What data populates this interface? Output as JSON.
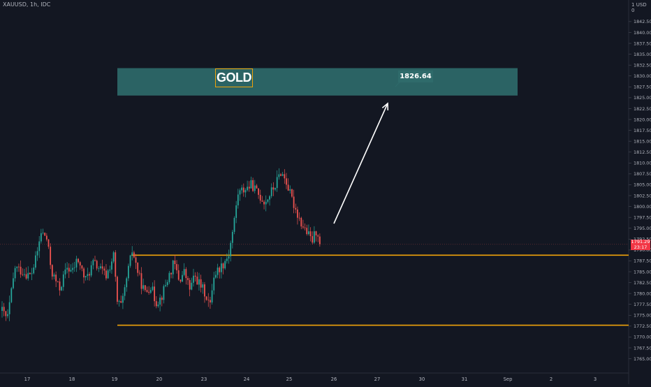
{
  "title": "XAUUSD, 1h, IDC",
  "currency": "USD",
  "currency_mark": "1",
  "axis_top_mark": "0",
  "colors": {
    "background": "#131722",
    "up": "#26a69a",
    "down": "#ef5350",
    "level_line": "#f0a30a",
    "target_zone": "#2f6b6b",
    "arrow": "#ffffff",
    "price_tag": "#f23645"
  },
  "annotations": {
    "gold_label": "GOLD",
    "target_value": "1826.64",
    "current_price": "1791.29",
    "countdown": "23:17"
  },
  "chart_data": {
    "type": "candlestick",
    "symbol": "XAUUSD",
    "timeframe": "1h",
    "source": "IDC",
    "y_axis": {
      "range": [
        1763,
        1846.5
      ],
      "ticks": [
        1765.0,
        1767.5,
        1770.0,
        1772.5,
        1775.0,
        1777.5,
        1780.0,
        1782.5,
        1785.0,
        1787.5,
        1790.0,
        1792.5,
        1795.0,
        1797.5,
        1800.0,
        1802.5,
        1805.0,
        1807.5,
        1810.0,
        1812.5,
        1815.0,
        1817.5,
        1820.0,
        1822.5,
        1825.0,
        1827.5,
        1830.0,
        1832.5,
        1835.0,
        1837.5,
        1840.0,
        1842.5
      ]
    },
    "x_axis": {
      "ticks": [
        "17",
        "18",
        "19",
        "20",
        "23",
        "24",
        "25",
        "26",
        "27",
        "30",
        "31",
        "Sep",
        "2",
        "3"
      ]
    },
    "levels": [
      1788.8,
      1772.7
    ],
    "target_zone": [
      1825.5,
      1831.8
    ],
    "target_price": 1826.64,
    "arrow": {
      "from": [
        26,
        1795.5
      ],
      "to": [
        27.2,
        1823.0
      ]
    },
    "current_price": 1791.29,
    "path": [
      [
        0,
        1776
      ],
      [
        4,
        1774
      ],
      [
        10,
        1786
      ],
      [
        16,
        1785
      ],
      [
        22,
        1784
      ],
      [
        26,
        1788
      ],
      [
        30,
        1794
      ],
      [
        34,
        1793
      ],
      [
        38,
        1785
      ],
      [
        44,
        1781
      ],
      [
        50,
        1786
      ],
      [
        54,
        1785
      ],
      [
        58,
        1788
      ],
      [
        64,
        1783
      ],
      [
        70,
        1787
      ],
      [
        74,
        1786
      ],
      [
        80,
        1784
      ],
      [
        86,
        1789
      ],
      [
        88,
        1778
      ],
      [
        92,
        1777
      ],
      [
        96,
        1784
      ],
      [
        100,
        1790
      ],
      [
        106,
        1783
      ],
      [
        110,
        1780
      ],
      [
        114,
        1782
      ],
      [
        118,
        1778
      ],
      [
        122,
        1779
      ],
      [
        128,
        1784
      ],
      [
        132,
        1787
      ],
      [
        136,
        1783
      ],
      [
        140,
        1785
      ],
      [
        144,
        1781
      ],
      [
        148,
        1784
      ],
      [
        152,
        1782
      ],
      [
        156,
        1780
      ],
      [
        160,
        1777
      ],
      [
        162,
        1784
      ],
      [
        170,
        1787
      ],
      [
        174,
        1789
      ],
      [
        178,
        1796
      ],
      [
        181,
        1803
      ],
      [
        186,
        1804
      ],
      [
        192,
        1805
      ],
      [
        196,
        1803
      ],
      [
        202,
        1801
      ],
      [
        206,
        1803
      ],
      [
        210,
        1805
      ],
      [
        214,
        1808
      ],
      [
        218,
        1806
      ],
      [
        222,
        1802
      ],
      [
        226,
        1799
      ],
      [
        230,
        1796
      ],
      [
        234,
        1794
      ],
      [
        238,
        1792
      ],
      [
        242,
        1795
      ],
      [
        244,
        1791
      ]
    ],
    "candles": {
      "start_x": 0,
      "spacing": 2.66,
      "count": 172,
      "seed": 42
    }
  }
}
